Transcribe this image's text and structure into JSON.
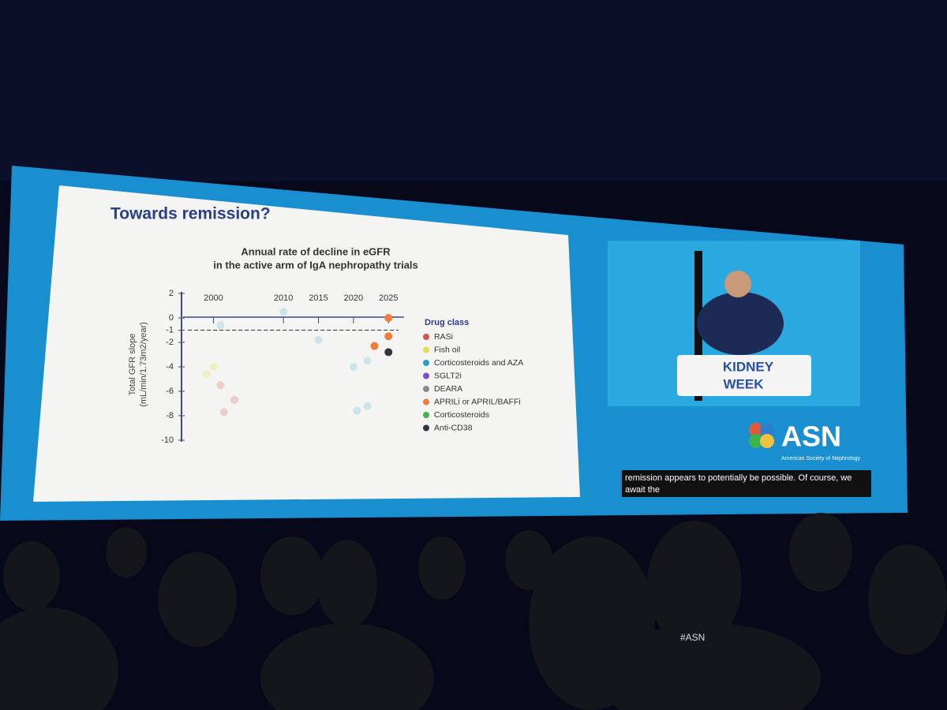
{
  "slide": {
    "title": "Towards remission?",
    "chart": {
      "type": "scatter",
      "title_lines": [
        "Annual rate of decline in eGFR",
        "in the active arm of IgA nephropathy trials"
      ],
      "y_label_lines": [
        "Total GFR slope",
        "(mL/min/1.73m2/year)"
      ],
      "ylim": [
        -10,
        2
      ],
      "yticks": [
        2,
        0,
        -1,
        -2,
        -4,
        -6,
        -8,
        -10
      ],
      "xlim": [
        1996,
        2027
      ],
      "xticks": [
        2000,
        2010,
        2015,
        2020,
        2025
      ],
      "reference_y": -1,
      "legend_title": "Drug class",
      "series": [
        {
          "name": "RASi",
          "color": "#d9534f",
          "opacity": 0.25,
          "x": [
            2001,
            2001.5,
            2003
          ],
          "values": [
            -5.5,
            -7.7,
            -6.7
          ]
        },
        {
          "name": "Fish oil",
          "color": "#e8e04a",
          "opacity": 0.3,
          "x": [
            2000,
            1999
          ],
          "values": [
            -4,
            -4.6
          ]
        },
        {
          "name": "Corticosteroids and AZA",
          "color": "#2aa0c8",
          "opacity": 0.2,
          "x": [
            2010,
            2001,
            2015,
            2020,
            2022,
            2022,
            2020.5
          ],
          "values": [
            0.5,
            -0.6,
            -1.8,
            -4,
            -3.5,
            -7.2,
            -7.6
          ]
        },
        {
          "name": "SGLT2i",
          "color": "#7b4fc8",
          "opacity": 1,
          "x": [],
          "values": []
        },
        {
          "name": "DEARA",
          "color": "#8a8a8a",
          "opacity": 1,
          "x": [],
          "values": []
        },
        {
          "name": "APRILi or APRIL/BAFFi",
          "color": "#f07c3c",
          "opacity": 1,
          "x": [
            2025,
            2023,
            2025
          ],
          "values": [
            0,
            -2.3,
            -1.5
          ]
        },
        {
          "name": "Corticosteroids",
          "color": "#3cb44b",
          "opacity": 1,
          "x": [],
          "values": []
        },
        {
          "name": "Anti-CD38",
          "color": "#333344",
          "opacity": 1,
          "x": [
            2025
          ],
          "values": [
            -2.8
          ]
        }
      ]
    }
  },
  "podium": {
    "line1": "KIDNEY",
    "line2": "WEEK"
  },
  "logo": {
    "name": "ASN",
    "subtitle": "American Society of Nephrology"
  },
  "caption": {
    "line1": "remission appears to potentially be possible.  Of course, we",
    "line2": "await the"
  },
  "badge": "#ASN"
}
